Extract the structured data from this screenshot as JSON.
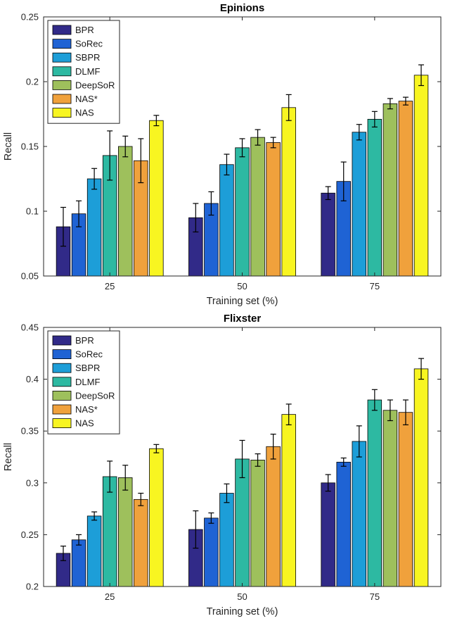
{
  "figure": {
    "background": "#ffffff",
    "axis_color": "#262626",
    "error_bar_color": "#000000"
  },
  "chart_data": [
    {
      "type": "bar",
      "title": "Epinions",
      "xlabel": "Training set (%)",
      "ylabel": "Recall",
      "categories": [
        "25",
        "50",
        "75"
      ],
      "ylim": [
        0.05,
        0.25
      ],
      "yticks": [
        0.05,
        0.1,
        0.15,
        0.2,
        0.25
      ],
      "ytick_labels": [
        "0.05",
        "0.1",
        "0.15",
        "0.2",
        "0.25"
      ],
      "grid": false,
      "legend_position": "top-left",
      "series": [
        {
          "name": "BPR",
          "color": "#312a88",
          "values": [
            0.088,
            0.095,
            0.114
          ],
          "errors": [
            0.015,
            0.011,
            0.005
          ]
        },
        {
          "name": "SoRec",
          "color": "#1f63d4",
          "values": [
            0.098,
            0.106,
            0.123
          ],
          "errors": [
            0.01,
            0.009,
            0.015
          ]
        },
        {
          "name": "SBPR",
          "color": "#1d9ed8",
          "values": [
            0.125,
            0.136,
            0.161
          ],
          "errors": [
            0.008,
            0.008,
            0.006
          ]
        },
        {
          "name": "DLMF",
          "color": "#2db9a2",
          "values": [
            0.143,
            0.149,
            0.171
          ],
          "errors": [
            0.019,
            0.007,
            0.006
          ]
        },
        {
          "name": "DeepSoR",
          "color": "#9ec05c",
          "values": [
            0.15,
            0.157,
            0.183
          ],
          "errors": [
            0.008,
            0.006,
            0.004
          ]
        },
        {
          "name": "NAS*",
          "color": "#f0a13c",
          "values": [
            0.139,
            0.153,
            0.185
          ],
          "errors": [
            0.017,
            0.004,
            0.003
          ]
        },
        {
          "name": "NAS",
          "color": "#f8f521",
          "values": [
            0.17,
            0.18,
            0.205
          ],
          "errors": [
            0.004,
            0.01,
            0.008
          ]
        }
      ]
    },
    {
      "type": "bar",
      "title": "Flixster",
      "xlabel": "Training set (%)",
      "ylabel": "Recall",
      "categories": [
        "25",
        "50",
        "75"
      ],
      "ylim": [
        0.2,
        0.45
      ],
      "yticks": [
        0.2,
        0.25,
        0.3,
        0.35,
        0.4,
        0.45
      ],
      "ytick_labels": [
        "0.2",
        "0.25",
        "0.3",
        "0.35",
        "0.4",
        "0.45"
      ],
      "grid": false,
      "legend_position": "top-left",
      "series": [
        {
          "name": "BPR",
          "color": "#312a88",
          "values": [
            0.232,
            0.255,
            0.3
          ],
          "errors": [
            0.007,
            0.018,
            0.008
          ]
        },
        {
          "name": "SoRec",
          "color": "#1f63d4",
          "values": [
            0.245,
            0.266,
            0.32
          ],
          "errors": [
            0.005,
            0.005,
            0.004
          ]
        },
        {
          "name": "SBPR",
          "color": "#1d9ed8",
          "values": [
            0.268,
            0.29,
            0.34
          ],
          "errors": [
            0.004,
            0.009,
            0.015
          ]
        },
        {
          "name": "DLMF",
          "color": "#2db9a2",
          "values": [
            0.306,
            0.323,
            0.38
          ],
          "errors": [
            0.015,
            0.018,
            0.01
          ]
        },
        {
          "name": "DeepSoR",
          "color": "#9ec05c",
          "values": [
            0.305,
            0.322,
            0.37
          ],
          "errors": [
            0.012,
            0.006,
            0.01
          ]
        },
        {
          "name": "NAS*",
          "color": "#f0a13c",
          "values": [
            0.284,
            0.335,
            0.368
          ],
          "errors": [
            0.006,
            0.012,
            0.012
          ]
        },
        {
          "name": "NAS",
          "color": "#f8f521",
          "values": [
            0.333,
            0.366,
            0.41
          ],
          "errors": [
            0.004,
            0.01,
            0.01
          ]
        }
      ]
    }
  ]
}
